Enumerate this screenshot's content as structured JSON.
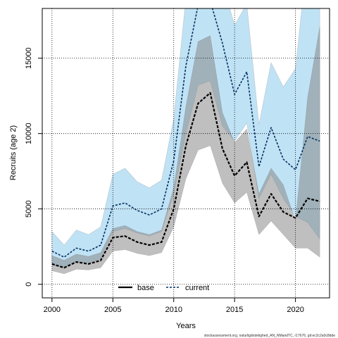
{
  "chart_data": {
    "type": "line",
    "xlabel": "Years",
    "ylabel": "Recruits (age 2)",
    "xlim": [
      1999.2,
      2022.8
    ],
    "ylim": [
      -900,
      18300
    ],
    "x_ticks": [
      2000,
      2005,
      2010,
      2015,
      2020
    ],
    "y_ticks": [
      0,
      5000,
      10000,
      15000
    ],
    "x_tick_labels": [
      "2000",
      "2005",
      "2010",
      "2015",
      "2020"
    ],
    "y_tick_labels": [
      "0",
      "5000",
      "10000",
      "15000"
    ],
    "grid": true,
    "legend_position": "bottom",
    "colors": {
      "base_line": "#000000",
      "base_band": "#808080",
      "current_line": "#00305f",
      "current_band": "#5ab4e5"
    },
    "x": [
      2000,
      2001,
      2002,
      2003,
      2004,
      2005,
      2006,
      2007,
      2008,
      2009,
      2010,
      2011,
      2012,
      2013,
      2014,
      2015,
      2016,
      2017,
      2018,
      2019,
      2020,
      2021,
      2022
    ],
    "series": [
      {
        "name": "base",
        "values": [
          1350,
          1100,
          1480,
          1350,
          1580,
          3100,
          3200,
          2800,
          2600,
          2800,
          5000,
          9200,
          12000,
          12700,
          9000,
          7200,
          8100,
          4500,
          6000,
          4800,
          4400,
          5700,
          5500
        ],
        "lower": [
          900,
          700,
          1000,
          950,
          1100,
          2200,
          2300,
          2050,
          1900,
          2100,
          3800,
          7000,
          8900,
          9200,
          6700,
          5400,
          6100,
          3300,
          4200,
          3300,
          2400,
          2400,
          1800
        ],
        "upper": [
          1900,
          1600,
          2000,
          1850,
          2100,
          3700,
          3900,
          3500,
          3300,
          3600,
          6400,
          11800,
          16100,
          16500,
          11400,
          9400,
          10300,
          6000,
          7700,
          6600,
          4200,
          12400,
          17100
        ]
      },
      {
        "name": "current",
        "values": [
          2200,
          1800,
          2400,
          2200,
          2600,
          5200,
          5400,
          4900,
          4600,
          5000,
          8200,
          14500,
          18500,
          18800,
          16000,
          12600,
          14100,
          7800,
          10400,
          8300,
          7600,
          9800,
          9500
        ],
        "lower": [
          1300,
          1100,
          1500,
          1400,
          1700,
          3500,
          3700,
          3400,
          3200,
          3500,
          6000,
          10000,
          13200,
          13500,
          10500,
          9500,
          10700,
          5700,
          7300,
          5700,
          4500,
          4100,
          3000
        ],
        "upper": [
          3500,
          2600,
          3600,
          3300,
          3800,
          7300,
          7700,
          6800,
          6400,
          6900,
          11000,
          19000,
          21000,
          21000,
          20000,
          17200,
          18600,
          10600,
          14700,
          13100,
          14300,
          22000,
          24000
        ]
      }
    ]
  },
  "footnote": "stockassessment.org, naturligdodelighed_AN_NMandTC, r17676, git:ec2c2a0c8dde"
}
